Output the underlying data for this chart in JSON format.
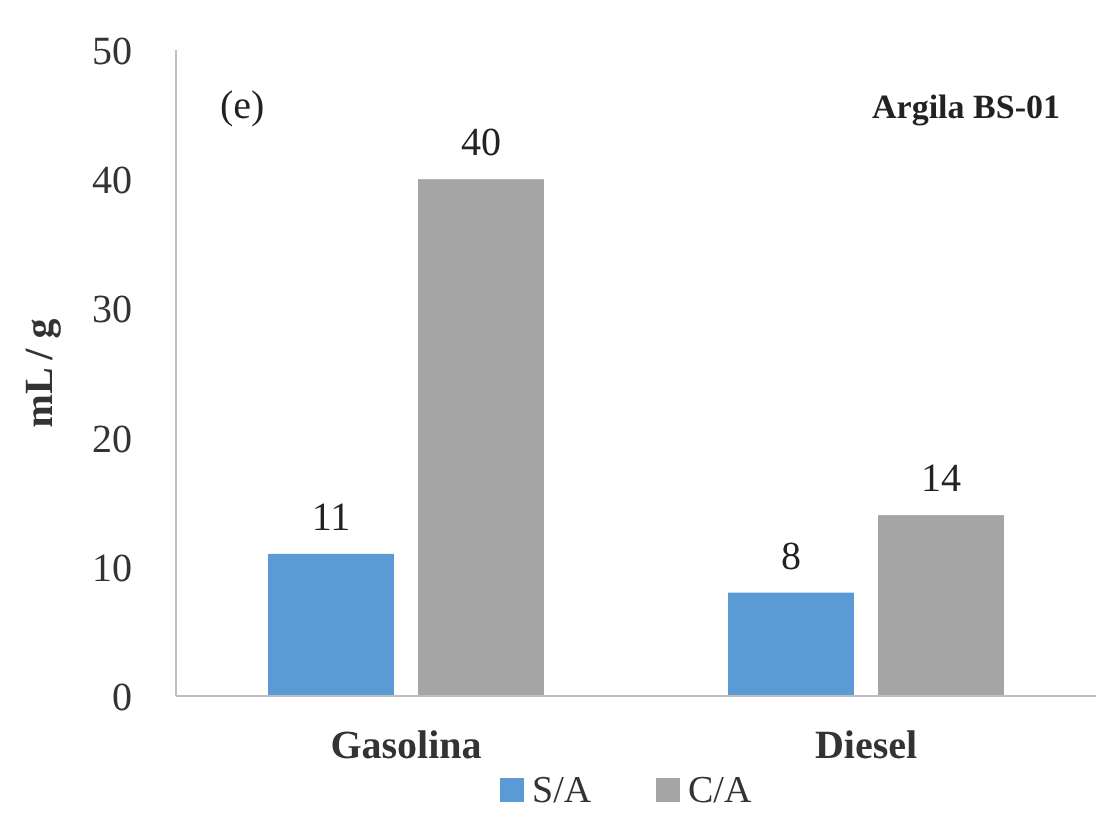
{
  "chart_data": {
    "type": "bar",
    "ylabel": "mL / g",
    "categories": [
      "Gasolina",
      "Diesel"
    ],
    "series": [
      {
        "name": "S/A",
        "color": "#5b9bd5",
        "values": [
          11,
          8
        ]
      },
      {
        "name": "C/A",
        "color": "#a5a5a5",
        "values": [
          40,
          14
        ]
      }
    ],
    "ylim": [
      0,
      50
    ],
    "yticks": [
      0,
      10,
      20,
      30,
      40,
      50
    ],
    "data_labels": true,
    "legend": "bottom",
    "grid": false,
    "annotations": [
      "(e)",
      "Argila BS-01"
    ]
  }
}
